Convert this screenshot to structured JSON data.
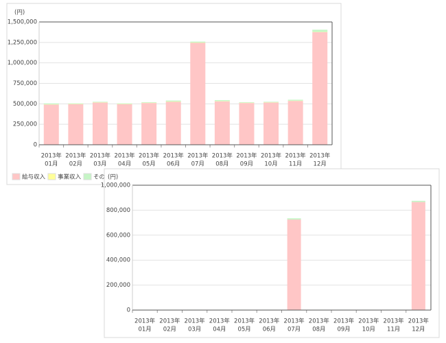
{
  "chart_data": [
    {
      "type": "bar",
      "stacked": true,
      "unit_label": "(円)",
      "grid": true,
      "categories": [
        [
          "2013年",
          "01月"
        ],
        [
          "2013年",
          "02月"
        ],
        [
          "2013年",
          "03月"
        ],
        [
          "2013年",
          "04月"
        ],
        [
          "2013年",
          "05月"
        ],
        [
          "2013年",
          "06月"
        ],
        [
          "2013年",
          "07月"
        ],
        [
          "2013年",
          "08月"
        ],
        [
          "2013年",
          "09月"
        ],
        [
          "2013年",
          "10月"
        ],
        [
          "2013年",
          "11月"
        ],
        [
          "2013年",
          "12月"
        ]
      ],
      "series": [
        {
          "name": "給与収入",
          "color": "#ffc6c6",
          "values": [
            490000,
            495000,
            515000,
            495000,
            510000,
            525000,
            1245000,
            530000,
            510000,
            515000,
            535000,
            1375000
          ]
        },
        {
          "name": "事業収入",
          "color": "#ffff99",
          "values": [
            3000,
            3000,
            3000,
            3000,
            3000,
            3000,
            3000,
            3000,
            3000,
            3000,
            3000,
            3000
          ]
        },
        {
          "name": "その他",
          "color": "#c6f5c6",
          "values": [
            12000,
            7000,
            7000,
            7000,
            7000,
            12000,
            12000,
            12000,
            7000,
            7000,
            12000,
            27000
          ]
        }
      ],
      "ylim": [
        0,
        1500000
      ],
      "yticks": [
        0,
        {
          "value": 250000,
          "label": "250,000"
        },
        {
          "value": 500000,
          "label": "500,000"
        },
        {
          "value": 750000,
          "label": "750,000"
        },
        {
          "value": 1000000,
          "label": "1,000,000"
        },
        {
          "value": 1250000,
          "label": "1,250,000"
        },
        {
          "value": 1500000,
          "label": "1,500,000"
        }
      ]
    },
    {
      "type": "bar",
      "stacked": true,
      "unit_label": "(円)",
      "grid": true,
      "categories": [
        [
          "2013年",
          "01月"
        ],
        [
          "2013年",
          "02月"
        ],
        [
          "2013年",
          "03月"
        ],
        [
          "2013年",
          "04月"
        ],
        [
          "2013年",
          "05月"
        ],
        [
          "2013年",
          "06月"
        ],
        [
          "2013年",
          "07月"
        ],
        [
          "2013年",
          "08月"
        ],
        [
          "2013年",
          "09月"
        ],
        [
          "2013年",
          "10月"
        ],
        [
          "2013年",
          "11月"
        ],
        [
          "2013年",
          "12月"
        ]
      ],
      "series": [
        {
          "color": "#ffc6c6",
          "values": [
            0,
            0,
            0,
            0,
            0,
            0,
            725000,
            0,
            0,
            0,
            0,
            865000
          ]
        },
        {
          "color": "#c6f5c6",
          "values": [
            3000,
            3000,
            3000,
            3000,
            3000,
            3000,
            10000,
            3000,
            3000,
            3000,
            3000,
            10000
          ]
        }
      ],
      "ylim": [
        0,
        1000000
      ],
      "yticks": [
        0,
        {
          "value": 200000,
          "label": "200,000"
        },
        {
          "value": 400000,
          "label": "400,000"
        },
        {
          "value": 600000,
          "label": "600,000"
        },
        {
          "value": 800000,
          "label": "800,000"
        },
        {
          "value": 1000000,
          "label": "1,000,000"
        }
      ]
    }
  ]
}
